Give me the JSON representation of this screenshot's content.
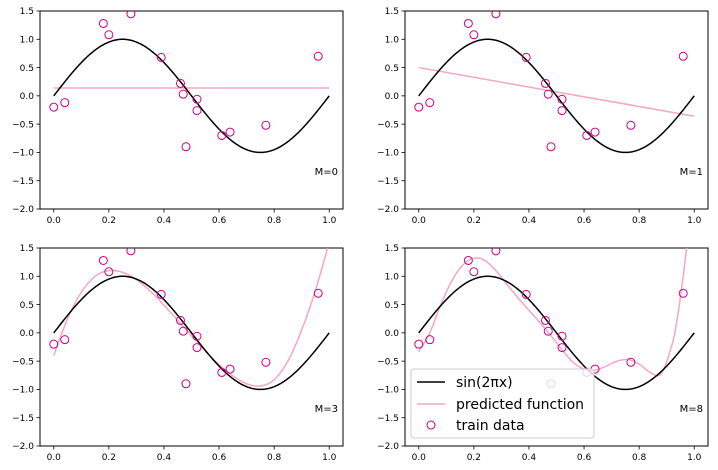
{
  "chart_data": {
    "type": "line",
    "colors": {
      "true_function": "#000000",
      "predicted_function": "#f4a6c2",
      "train_data": "#cc0088",
      "axes": "#000000"
    },
    "train_data": {
      "x": [
        0.0,
        0.04,
        0.18,
        0.2,
        0.28,
        0.39,
        0.46,
        0.47,
        0.48,
        0.52,
        0.52,
        0.61,
        0.64,
        0.77,
        0.96
      ],
      "y": [
        -0.2,
        -0.12,
        1.28,
        1.08,
        1.45,
        0.68,
        0.22,
        0.03,
        -0.9,
        -0.06,
        -0.26,
        -0.7,
        -0.64,
        -0.52,
        0.7
      ]
    },
    "true_function": {
      "label": "sin(2πx)",
      "formula": "sin(2*pi*x)"
    },
    "legend": {
      "placement": "lower-left",
      "entries": [
        {
          "label": "sin(2πx)",
          "style": "line",
          "series": "true_function"
        },
        {
          "label": "predicted function",
          "style": "line",
          "series": "predicted_function"
        },
        {
          "label": "train data",
          "style": "marker",
          "series": "train_data"
        }
      ]
    },
    "xlim": [
      -0.05,
      1.05
    ],
    "ylim": [
      -2.0,
      1.5
    ],
    "xticks": [
      0.0,
      0.2,
      0.4,
      0.6,
      0.8,
      1.0
    ],
    "yticks": [
      -2.0,
      -1.5,
      -1.0,
      -0.5,
      0.0,
      0.5,
      1.0,
      1.5
    ],
    "xtick_labels": [
      "0.0",
      "0.2",
      "0.4",
      "0.6",
      "0.8",
      "1.0"
    ],
    "ytick_labels": [
      "−2.0",
      "−1.5",
      "−1.0",
      "−0.5",
      "0.0",
      "0.5",
      "1.0",
      "1.5"
    ],
    "grid": false,
    "panels": [
      {
        "label": "M=0",
        "predicted": {
          "x": [
            0.0,
            1.0
          ],
          "y": [
            0.14,
            0.14
          ]
        }
      },
      {
        "label": "M=1",
        "predicted": {
          "x": [
            0.0,
            1.0
          ],
          "y": [
            0.5,
            -0.36
          ]
        }
      },
      {
        "label": "M=3",
        "predicted": {
          "x": [
            0.0,
            0.05,
            0.1,
            0.15,
            0.2,
            0.25,
            0.3,
            0.35,
            0.4,
            0.45,
            0.5,
            0.55,
            0.6,
            0.65,
            0.7,
            0.75,
            0.8,
            0.85,
            0.9,
            0.95,
            1.0
          ],
          "y": [
            -0.4,
            0.25,
            0.72,
            1.0,
            1.1,
            1.07,
            0.94,
            0.74,
            0.49,
            0.22,
            -0.05,
            -0.32,
            -0.56,
            -0.76,
            -0.9,
            -0.94,
            -0.83,
            -0.5,
            0.05,
            0.75,
            1.6
          ]
        }
      },
      {
        "label": "M=8",
        "predicted": {
          "x": [
            0.0,
            0.04,
            0.08,
            0.12,
            0.16,
            0.2,
            0.24,
            0.28,
            0.32,
            0.36,
            0.4,
            0.44,
            0.48,
            0.52,
            0.56,
            0.6,
            0.64,
            0.68,
            0.72,
            0.76,
            0.8,
            0.84,
            0.88,
            0.92,
            0.94,
            0.96,
            0.98,
            1.0
          ],
          "y": [
            -0.33,
            0.0,
            0.5,
            0.92,
            1.2,
            1.32,
            1.28,
            1.1,
            0.86,
            0.62,
            0.4,
            0.18,
            -0.05,
            -0.3,
            -0.52,
            -0.64,
            -0.66,
            -0.59,
            -0.5,
            -0.47,
            -0.55,
            -0.7,
            -0.72,
            -0.2,
            0.3,
            1.0,
            1.8,
            2.6
          ]
        }
      }
    ]
  }
}
